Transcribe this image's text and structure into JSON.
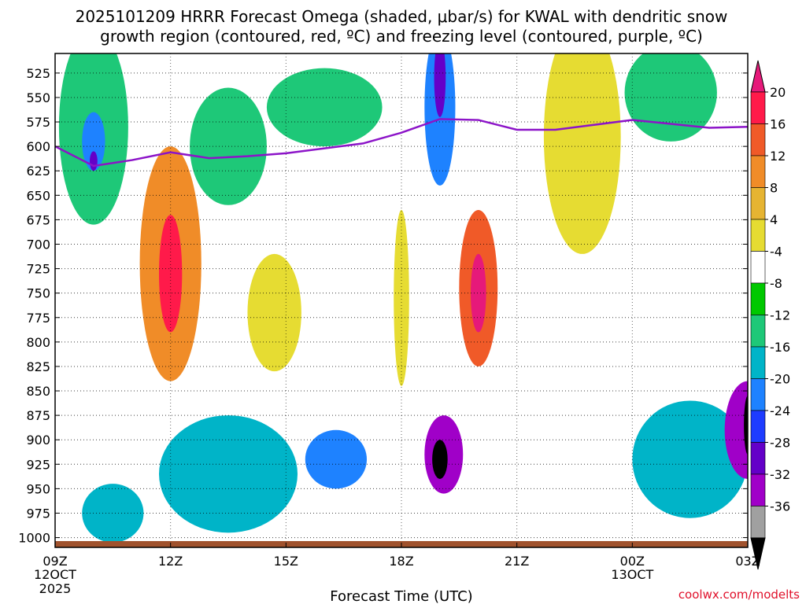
{
  "chart_data": {
    "type": "heatmap",
    "title_line1": "2025101209 HRRR Forecast Omega (shaded, μbar/s) for KWAL with dendritic snow",
    "title_line2": "growth region (contoured, red, ºC) and freezing level (contoured, purple, ºC)",
    "xlabel": "Forecast Time (UTC)",
    "credit": "coolwx.com/modelts",
    "x_ticks": [
      {
        "hour": 0,
        "label": "09Z",
        "sub1": "12OCT",
        "sub2": "2025"
      },
      {
        "hour": 3,
        "label": "12Z"
      },
      {
        "hour": 6,
        "label": "15Z"
      },
      {
        "hour": 9,
        "label": "18Z"
      },
      {
        "hour": 12,
        "label": "21Z"
      },
      {
        "hour": 15,
        "label": "00Z",
        "sub1": "13OCT"
      },
      {
        "hour": 18,
        "label": "03Z"
      }
    ],
    "xlim": [
      0,
      18
    ],
    "ylim": [
      1010,
      505
    ],
    "y_ticks": [
      525,
      550,
      575,
      600,
      625,
      650,
      675,
      700,
      725,
      750,
      775,
      800,
      825,
      850,
      875,
      900,
      925,
      950,
      975,
      1000
    ],
    "colorbar": {
      "labels": [
        "20",
        "16",
        "12",
        "8",
        "4",
        "-4",
        "-8",
        "-12",
        "-16",
        "-20",
        "-24",
        "-28",
        "-32",
        "-36"
      ],
      "colors": [
        "#ff1a4a",
        "#f05a28",
        "#f08c28",
        "#e6b432",
        "#e6dc32",
        "#ffffff",
        "#00c800",
        "#1ec878",
        "#00b4c8",
        "#1e82ff",
        "#1e3cff",
        "#6400c8",
        "#a000c8",
        "#a0a0a0"
      ],
      "top_arrow_color": "#e6197a",
      "bottom_arrow_color": "#000000"
    },
    "freezing_level": {
      "color": "#8c14c8",
      "hours": [
        0,
        1,
        2,
        3,
        4,
        5,
        6,
        7,
        8,
        9,
        10,
        11,
        12,
        13,
        14,
        15,
        16,
        17,
        18
      ],
      "pressure": [
        600,
        620,
        614,
        606,
        612,
        610,
        607,
        602,
        597,
        586,
        572,
        573,
        583,
        583,
        578,
        573,
        577,
        581,
        580
      ]
    },
    "surface_color": "#a0522d",
    "features": [
      {
        "value": -8,
        "center": [
          1.0,
          580
        ],
        "radius": [
          0.9,
          100
        ]
      },
      {
        "value": -16,
        "center": [
          1.0,
          595
        ],
        "radius": [
          0.3,
          30
        ]
      },
      {
        "value": -24,
        "center": [
          1.0,
          615
        ],
        "radius": [
          0.1,
          10
        ]
      },
      {
        "value": 8,
        "center": [
          3.0,
          720
        ],
        "radius": [
          0.8,
          120
        ]
      },
      {
        "value": 16,
        "center": [
          3.0,
          730
        ],
        "radius": [
          0.3,
          60
        ]
      },
      {
        "value": -8,
        "center": [
          4.5,
          600
        ],
        "radius": [
          1.0,
          60
        ]
      },
      {
        "value": -12,
        "center": [
          1.5,
          975
        ],
        "radius": [
          0.8,
          30
        ]
      },
      {
        "value": -12,
        "center": [
          4.5,
          935
        ],
        "radius": [
          1.8,
          60
        ]
      },
      {
        "value": -16,
        "center": [
          7.3,
          920
        ],
        "radius": [
          0.8,
          30
        ]
      },
      {
        "value": 4,
        "center": [
          5.7,
          770
        ],
        "radius": [
          0.7,
          60
        ]
      },
      {
        "value": -8,
        "center": [
          7.0,
          560
        ],
        "radius": [
          1.5,
          40
        ]
      },
      {
        "value": -16,
        "center": [
          10.0,
          560
        ],
        "radius": [
          0.4,
          80
        ]
      },
      {
        "value": -24,
        "center": [
          10.0,
          530
        ],
        "radius": [
          0.15,
          40
        ]
      },
      {
        "value": 4,
        "center": [
          9.0,
          755
        ],
        "radius": [
          0.2,
          90
        ]
      },
      {
        "value": 12,
        "center": [
          11.0,
          745
        ],
        "radius": [
          0.5,
          80
        ]
      },
      {
        "value": 20,
        "center": [
          11.0,
          750
        ],
        "radius": [
          0.2,
          40
        ]
      },
      {
        "value": -28,
        "center": [
          10.1,
          915
        ],
        "radius": [
          0.5,
          40
        ]
      },
      {
        "value": -36,
        "center": [
          10.0,
          920
        ],
        "radius": [
          0.2,
          20
        ]
      },
      {
        "value": 4,
        "center": [
          13.7,
          590
        ],
        "radius": [
          1.0,
          120
        ]
      },
      {
        "value": -8,
        "center": [
          16.0,
          545
        ],
        "radius": [
          1.2,
          50
        ]
      },
      {
        "value": -12,
        "center": [
          16.5,
          920
        ],
        "radius": [
          1.5,
          60
        ]
      },
      {
        "value": -28,
        "center": [
          18.0,
          890
        ],
        "radius": [
          0.6,
          50
        ]
      },
      {
        "value": -36,
        "center": [
          18.0,
          885
        ],
        "radius": [
          0.1,
          30
        ]
      }
    ]
  }
}
